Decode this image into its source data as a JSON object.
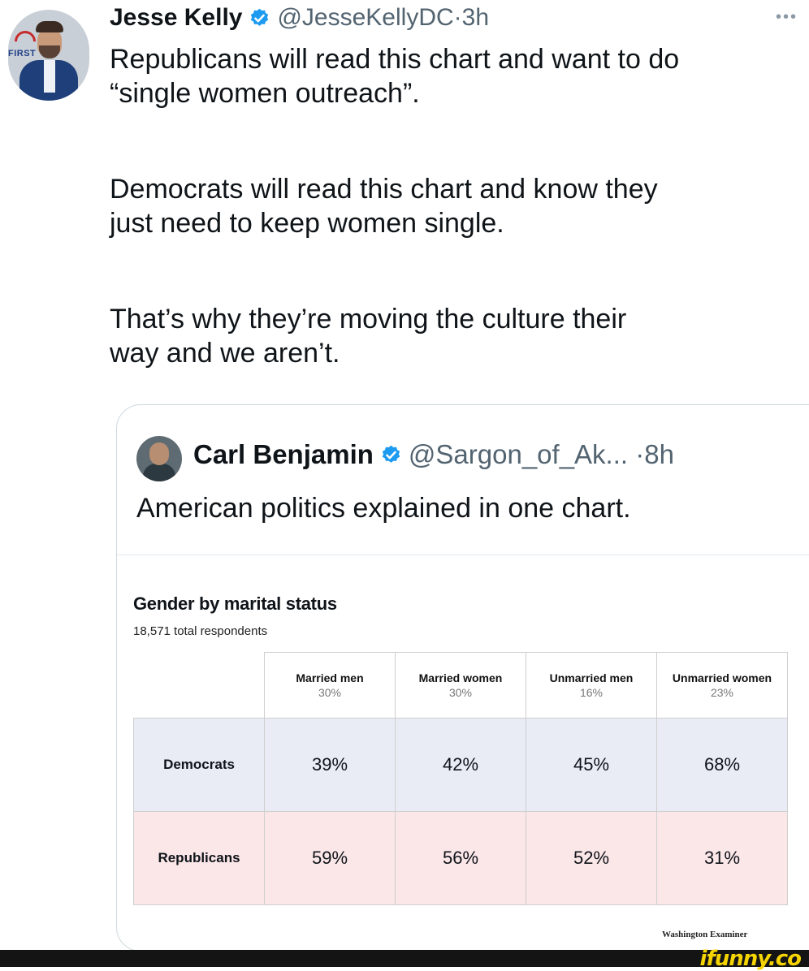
{
  "tweet": {
    "author_name": "Jesse Kelly",
    "author_handle": "@JesseKellyDC",
    "time": "3h",
    "avatar_badge": "FIRST",
    "lines": [
      "Republicans will read this chart and want to do",
      "“single women outreach”.",
      "Democrats will read this chart and know they",
      "just need to keep women single.",
      "That’s why they’re moving the culture their",
      "way and we aren’t."
    ],
    "more_icon": "ellipsis-icon",
    "verified_color": "#1d9bf0"
  },
  "quote": {
    "author_name": "Carl Benjamin",
    "author_handle": "@Sargon_of_Ak...",
    "time": "8h",
    "text": "American politics explained in one chart."
  },
  "chart": {
    "title": "Gender by marital status",
    "subtitle": "18,571 total respondents",
    "columns": [
      {
        "label": "Married men",
        "share": "30%"
      },
      {
        "label": "Married women",
        "share": "30%"
      },
      {
        "label": "Unmarried men",
        "share": "16%"
      },
      {
        "label": "Unmarried women",
        "share": "23%"
      }
    ],
    "rows": [
      {
        "label": "Democrats",
        "values": [
          "39%",
          "42%",
          "45%",
          "68%"
        ],
        "color": "#e9ecf5"
      },
      {
        "label": "Republicans",
        "values": [
          "59%",
          "56%",
          "52%",
          "31%"
        ],
        "color": "#fbe6e8"
      }
    ],
    "source": "Washington Examiner"
  },
  "watermark": "ifunny.co"
}
